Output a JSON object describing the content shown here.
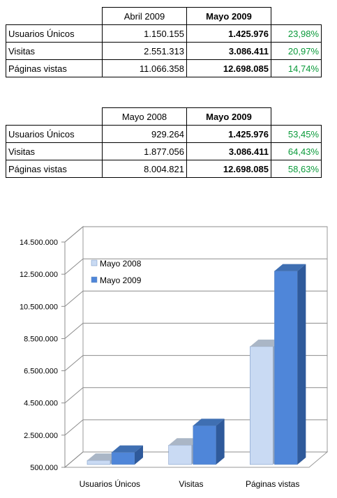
{
  "table1": {
    "headers": [
      "Abril 2009",
      "Mayo 2009"
    ],
    "rows": [
      {
        "label": "Usuarios Únicos",
        "prev": "1.150.155",
        "curr": "1.425.976",
        "change": "23,98%"
      },
      {
        "label": "Visitas",
        "prev": "2.551.313",
        "curr": "3.086.411",
        "change": "20,97%"
      },
      {
        "label": "Páginas vistas",
        "prev": "11.066.358",
        "curr": "12.698.085",
        "change": "14,74%"
      }
    ]
  },
  "table2": {
    "headers": [
      "Mayo 2008",
      "Mayo 2009"
    ],
    "rows": [
      {
        "label": "Usuarios Únicos",
        "prev": "929.264",
        "curr": "1.425.976",
        "change": "53,45%"
      },
      {
        "label": "Visitas",
        "prev": "1.877.056",
        "curr": "3.086.411",
        "change": "64,43%"
      },
      {
        "label": "Páginas vistas",
        "prev": "8.004.821",
        "curr": "12.698.085",
        "change": "58,63%"
      }
    ]
  },
  "colors": {
    "change_text": "#0a9a3a",
    "series_2008": "#c9daf3",
    "series_2009": "#4f86d9"
  },
  "chart_data": {
    "type": "bar",
    "categories": [
      "Usuarios Únicos",
      "Visitas",
      "Páginas vistas"
    ],
    "series": [
      {
        "name": "Mayo 2008",
        "values": [
          929264,
          1877056,
          8004821
        ]
      },
      {
        "name": "Mayo 2009",
        "values": [
          1425976,
          3086411,
          12698085
        ]
      }
    ],
    "yticks": [
      500000,
      2500000,
      4500000,
      6500000,
      8500000,
      10500000,
      12500000,
      14500000
    ],
    "ytick_labels": [
      "500.000",
      "2.500.000",
      "4.500.000",
      "6.500.000",
      "8.500.000",
      "10.500.000",
      "12.500.000",
      "14.500.000"
    ],
    "ylim": [
      500000,
      14500000
    ],
    "legend_position": "top-left",
    "style": "3d",
    "grid": true
  }
}
